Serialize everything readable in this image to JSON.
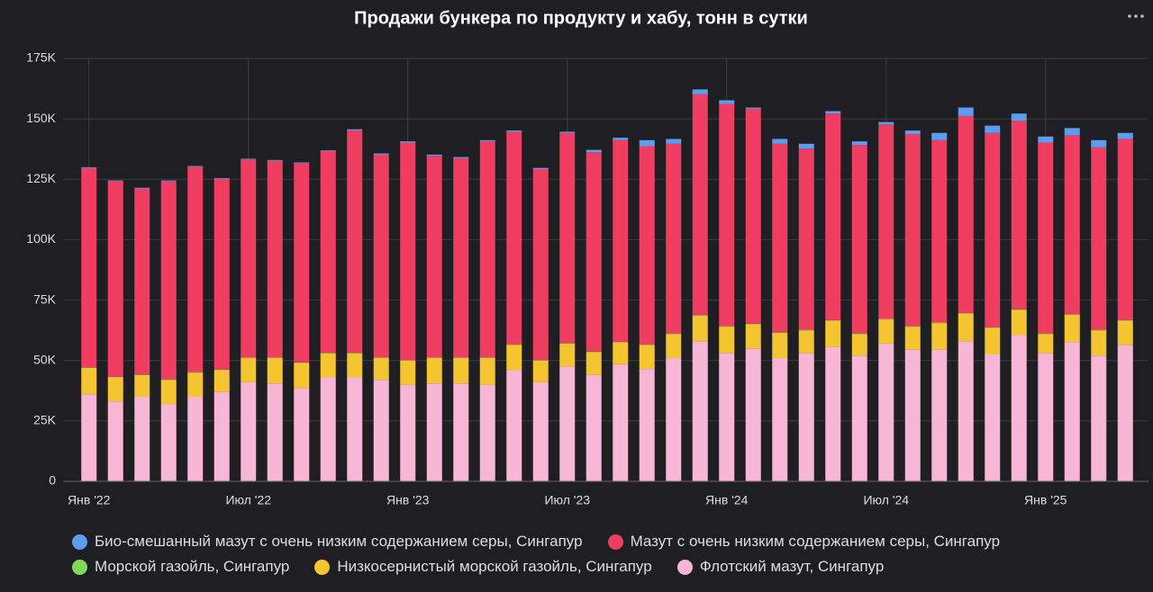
{
  "chart_data": {
    "type": "stacked_bar",
    "title": "Продажи бункера по продукту и хабу, тонн в сутки",
    "categories": [
      "Янв '22",
      null,
      null,
      null,
      null,
      null,
      "Июл '22",
      null,
      null,
      null,
      null,
      null,
      "Янв '23",
      null,
      null,
      null,
      null,
      null,
      "Июл '23",
      null,
      null,
      null,
      null,
      null,
      "Янв '24",
      null,
      null,
      null,
      null,
      null,
      "Июл '24",
      null,
      null,
      null,
      null,
      null,
      "Янв '25",
      null,
      null,
      null
    ],
    "series": [
      {
        "name": "Био-смешанный мазут с очень низким содержанием серы, Сингапур",
        "color": "#5b9ef0",
        "values": [
          300,
          300,
          300,
          300,
          300,
          300,
          300,
          300,
          300,
          300,
          500,
          500,
          500,
          500,
          500,
          500,
          500,
          500,
          500,
          1000,
          1000,
          2500,
          2000,
          2000,
          1500,
          500,
          2000,
          2000,
          1000,
          1500,
          1000,
          1500,
          3000,
          3500,
          3000,
          3000,
          2500,
          3000,
          3000,
          2500
        ]
      },
      {
        "name": "Мазут с очень низким содержанием серы, Сингапур",
        "color": "#ef3e62",
        "values": [
          82500,
          81000,
          77000,
          82000,
          85000,
          79000,
          82000,
          81500,
          82500,
          83500,
          92000,
          84000,
          90000,
          83500,
          82500,
          89500,
          88000,
          79000,
          87000,
          82500,
          83500,
          82000,
          78500,
          91500,
          92000,
          89000,
          78000,
          75000,
          85500,
          78000,
          80500,
          79500,
          75500,
          81500,
          80500,
          78000,
          79000,
          74000,
          75500,
          75000
        ]
      },
      {
        "name": "Морской газойль, Сингапур",
        "color": "#7ed957",
        "values": [
          200,
          200,
          200,
          200,
          200,
          200,
          200,
          200,
          200,
          200,
          200,
          200,
          200,
          200,
          200,
          200,
          200,
          200,
          200,
          200,
          200,
          200,
          200,
          200,
          200,
          200,
          200,
          200,
          200,
          200,
          200,
          200,
          200,
          200,
          200,
          200,
          200,
          200,
          200,
          200
        ]
      },
      {
        "name": "Низкосернистый морской газойль, Сингапур",
        "color": "#f5c531",
        "values": [
          11000,
          10000,
          9000,
          10000,
          10000,
          9000,
          10000,
          10500,
          10500,
          10000,
          10000,
          9000,
          10000,
          10500,
          10500,
          11000,
          10500,
          9000,
          9500,
          9500,
          9000,
          10000,
          10000,
          10500,
          11000,
          10000,
          10500,
          9500,
          11000,
          9000,
          10000,
          9500,
          11000,
          11500,
          11000,
          10500,
          8000,
          11500,
          10500,
          10000
        ]
      },
      {
        "name": "Флотский мазут, Сингапур",
        "color": "#f7b6d6",
        "values": [
          36000,
          33000,
          35000,
          32000,
          35000,
          37000,
          41000,
          40500,
          38500,
          43000,
          43000,
          42000,
          40000,
          40500,
          40500,
          40000,
          46000,
          41000,
          47500,
          44000,
          48500,
          46500,
          51000,
          58000,
          53000,
          55000,
          51000,
          53000,
          55500,
          52000,
          57000,
          54500,
          54500,
          58000,
          52500,
          60500,
          53000,
          57500,
          52000,
          56500
        ]
      }
    ],
    "ylim": [
      0,
      175000
    ],
    "yticks": [
      0,
      {
        "value": 25000,
        "label": "25K"
      },
      {
        "value": 50000,
        "label": "50K"
      },
      {
        "value": 75000,
        "label": "75K"
      },
      {
        "value": 100000,
        "label": "100K"
      },
      {
        "value": 125000,
        "label": "125K"
      },
      {
        "value": 150000,
        "label": "150K"
      },
      {
        "value": 175000,
        "label": "175K"
      }
    ],
    "grid": true
  }
}
